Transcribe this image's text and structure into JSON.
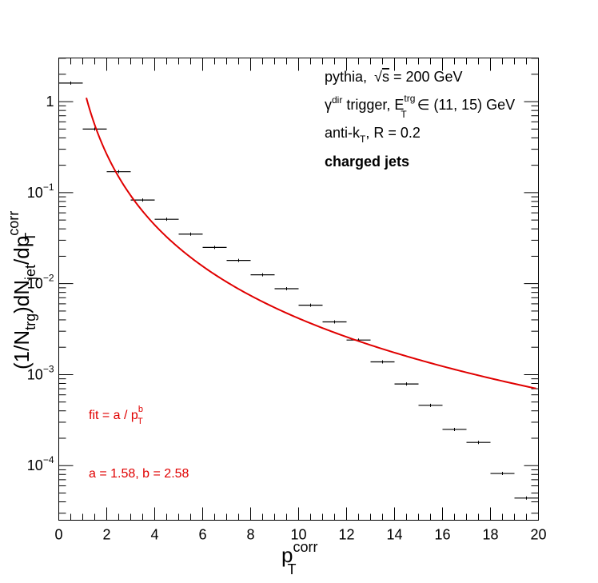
{
  "chart_data": {
    "type": "scatter",
    "x_range": [
      0,
      20
    ],
    "y_range_log10": [
      -4.6,
      0.48
    ],
    "y_scale": "log",
    "grid": false,
    "x_ticks": [
      "0",
      "2",
      "4",
      "6",
      "8",
      "10",
      "12",
      "14",
      "16",
      "18",
      "20"
    ],
    "y_tick_values": [
      1,
      0.1,
      0.01,
      0.001,
      0.0001
    ],
    "y_tick_mantissa": [
      "1",
      "10",
      "10",
      "10",
      "10"
    ],
    "y_tick_exponents": [
      "",
      "−1",
      "−2",
      "−3",
      "−4"
    ],
    "series": [
      {
        "x": [
          0.5,
          1.5,
          2.5,
          3.5,
          4.5,
          5.5,
          6.5,
          7.5,
          8.5,
          9.5,
          10.5,
          11.5,
          12.5,
          13.5,
          14.5,
          15.5,
          16.5,
          17.5,
          18.5,
          19.5
        ],
        "y": [
          1.6,
          0.5,
          0.17,
          0.083,
          0.051,
          0.035,
          0.025,
          0.018,
          0.0125,
          0.0088,
          0.0058,
          0.0038,
          0.0024,
          0.00138,
          0.00079,
          0.00046,
          0.00025,
          0.00018,
          8.2e-05,
          4.4e-05
        ],
        "xerr": 0.5,
        "color": "#000000"
      }
    ],
    "fit": {
      "a": 1.58,
      "b": 2.58,
      "x_from": 1.15,
      "x_to": 19.9,
      "color": "#e00000"
    },
    "legend_lines": [
      "pythia, √s = 200 GeV",
      "γdir trigger, ETtrg ∈ (11, 15) GeV",
      "anti-kT, R = 0.2",
      "charged jets"
    ],
    "annotations": [
      "fit = a / pTb",
      "a = 1.58, b = 2.58"
    ]
  },
  "text": {
    "l1_a": "pythia,",
    "l1_sqrt": "√",
    "l1_s": "s",
    "l1_b": " = 200 GeV",
    "l2_gamma": "γ",
    "l2_dir": "dir",
    "l2_mid": " trigger, E",
    "l2_trg": "trg",
    "l2_T": "T",
    "l2_end": " ∈ (11, 15) GeV",
    "l3_a": "anti-k",
    "l3_T": "T",
    "l3_b": ", R = 0.2",
    "l4": "charged jets",
    "fit_a": "fit = a / p",
    "fit_b": "b",
    "fit_T": "T",
    "params": "a = 1.58, b = 2.58",
    "xlabel_p": "p",
    "xlabel_corr": "corr",
    "xlabel_T": "T",
    "ylabel_1": "(1/N",
    "ylabel_trg": "trg",
    "ylabel_2": ")dN",
    "ylabel_jet": "jet",
    "ylabel_3": "/dp",
    "ylabel_corr": "corr",
    "ylabel_T": "T"
  }
}
